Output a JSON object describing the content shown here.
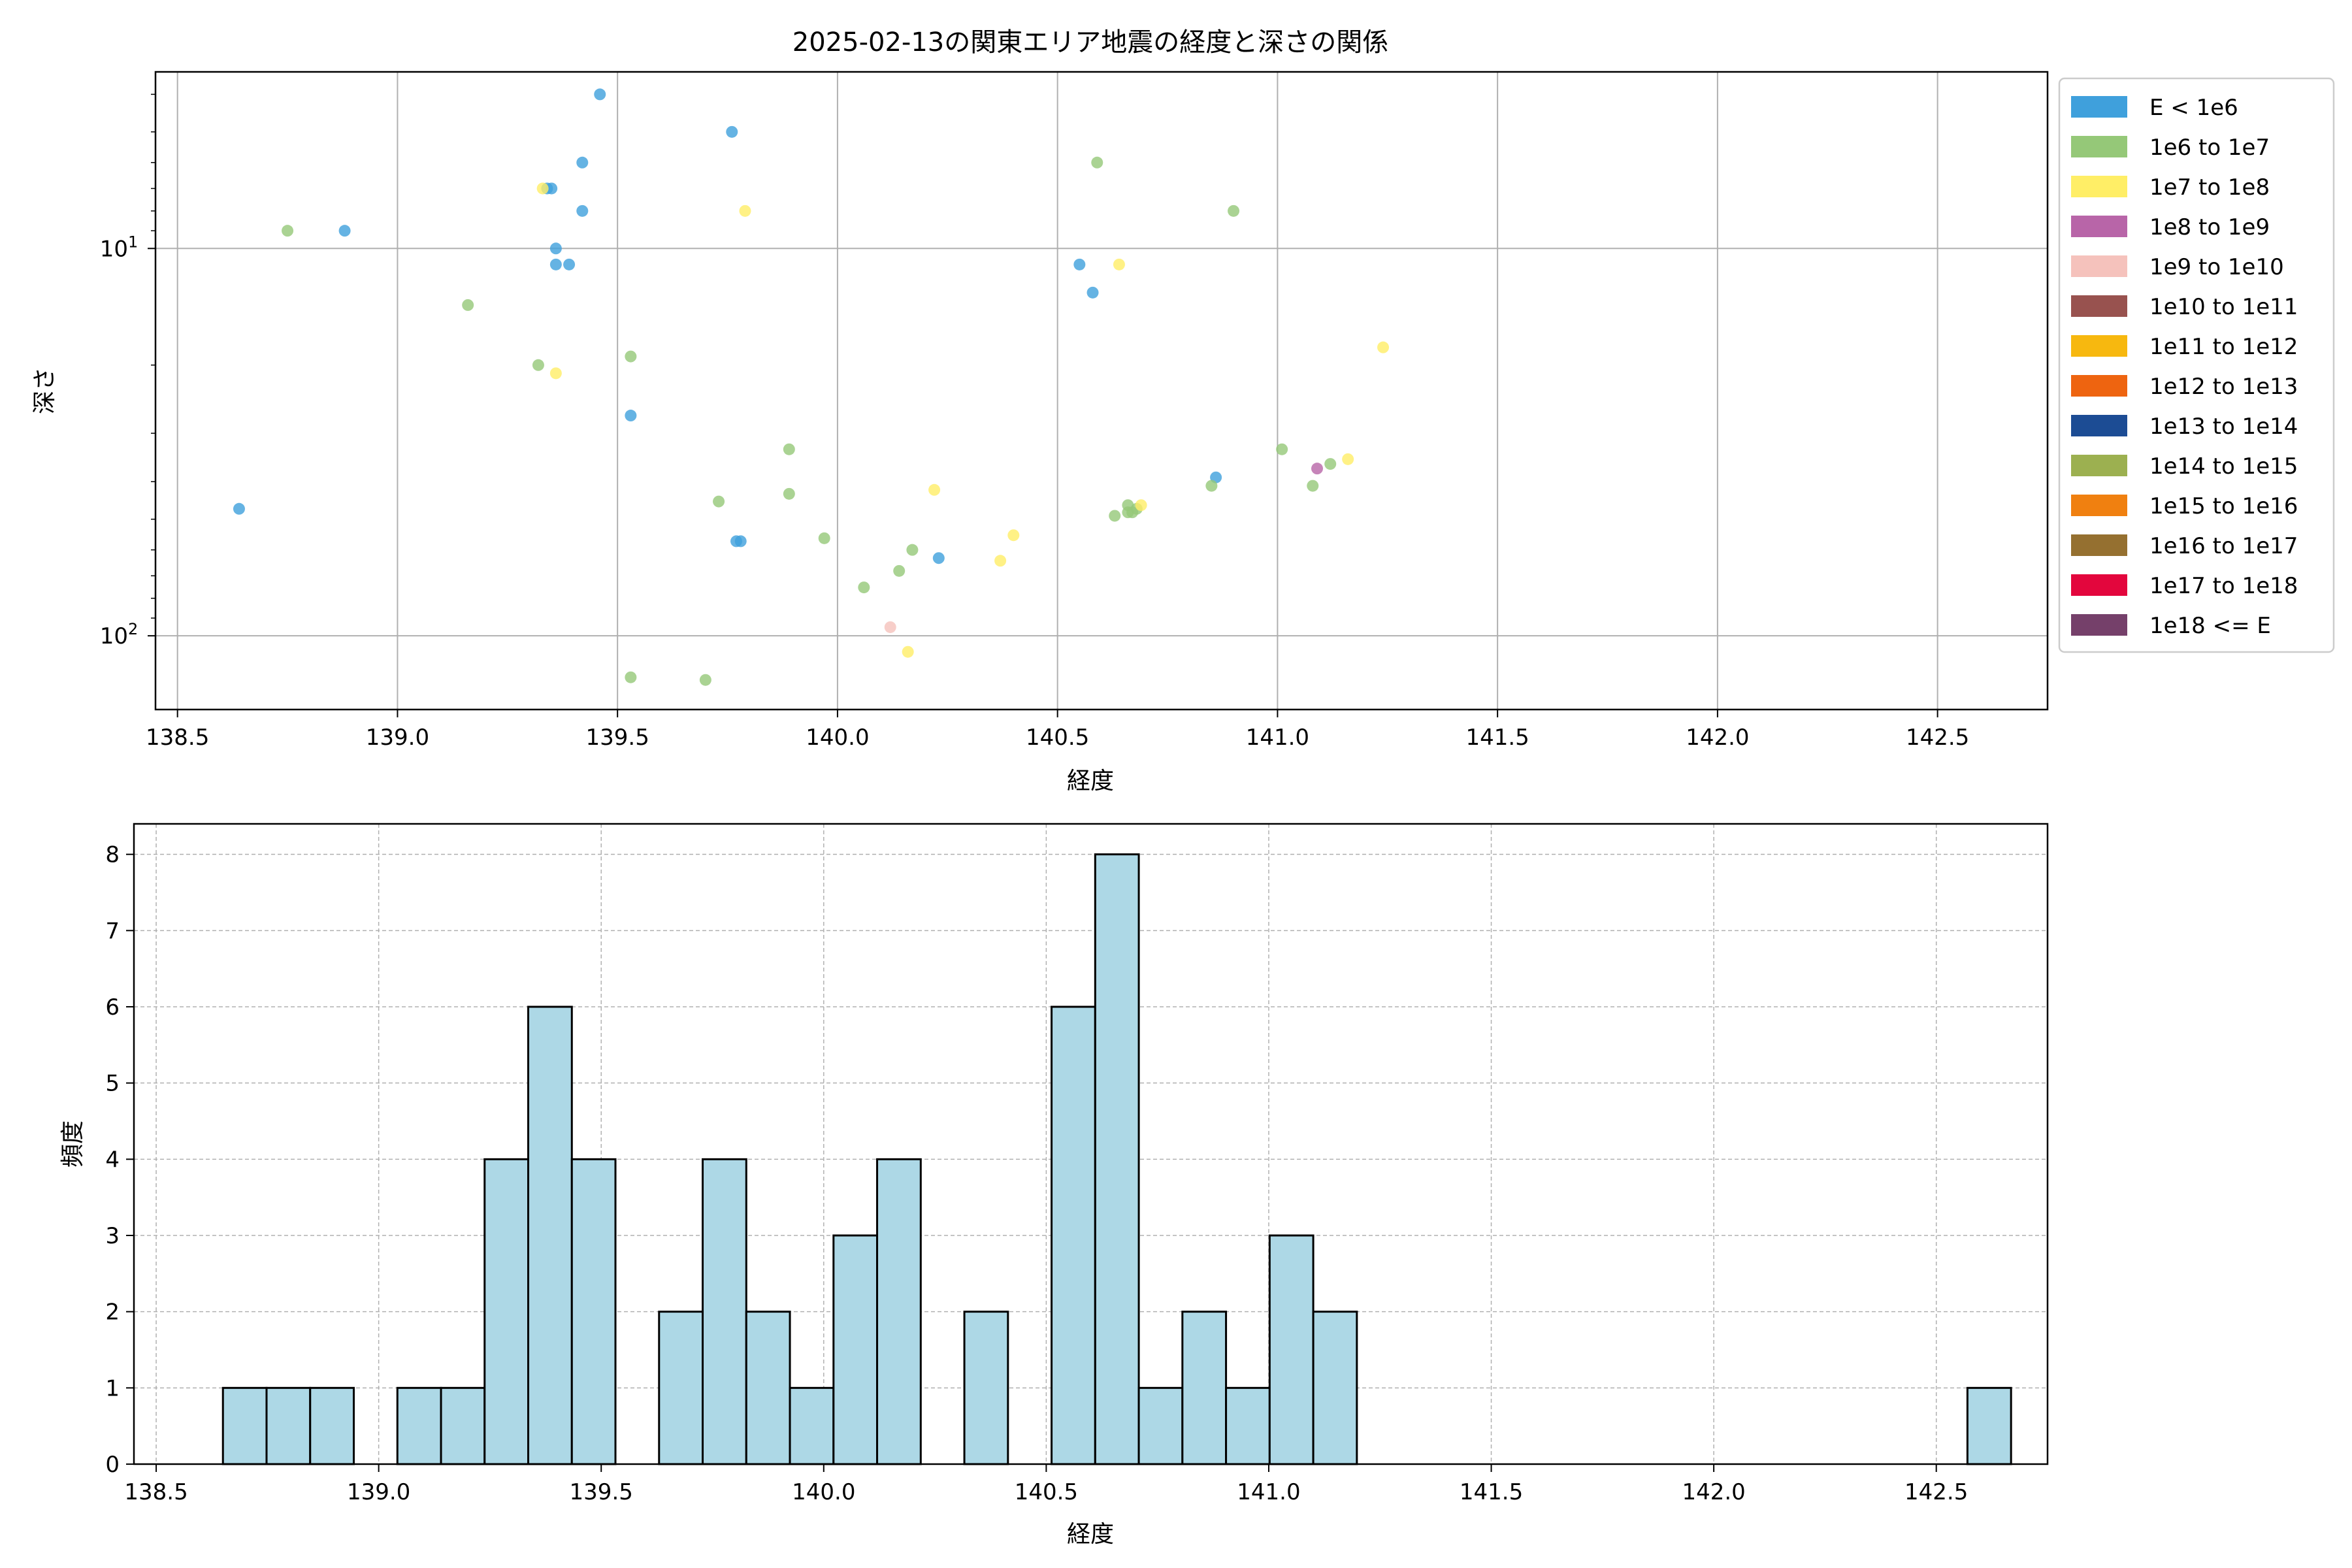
{
  "chart_data": [
    {
      "type": "scatter",
      "title": "2025-02-13の関東エリア地震の経度と深さの関係",
      "xlabel": "経度",
      "ylabel": "深さ",
      "xlim": [
        138.45,
        142.75
      ],
      "ylim": [
        3.5,
        155
      ],
      "yscale": "log",
      "y_inverted": true,
      "grid": true,
      "legend_position": "outside-right",
      "x_ticks": [
        "138.5",
        "139.0",
        "139.5",
        "140.0",
        "140.5",
        "141.0",
        "141.5",
        "142.0",
        "142.5"
      ],
      "y_tick_values": [
        10,
        100
      ],
      "y_tick_labels": [
        {
          "base": "10",
          "exp": "1"
        },
        {
          "base": "10",
          "exp": "2"
        }
      ],
      "legend": [
        {
          "label": "E < 1e6",
          "color": "#3FA0DC"
        },
        {
          "label": "1e6 to 1e7",
          "color": "#95C878"
        },
        {
          "label": "1e7 to 1e8",
          "color": "#FFEE66"
        },
        {
          "label": "1e8 to 1e9",
          "color": "#B865A8"
        },
        {
          "label": "1e9 to 1e10",
          "color": "#F5C2BC"
        },
        {
          "label": "1e10 to 1e11",
          "color": "#98524F"
        },
        {
          "label": "1e11 to 1e12",
          "color": "#F7B80F"
        },
        {
          "label": "1e12 to 1e13",
          "color": "#EE6410"
        },
        {
          "label": "1e13 to 1e14",
          "color": "#1C4C94"
        },
        {
          "label": "1e14 to 1e15",
          "color": "#9CB050"
        },
        {
          "label": "1e15 to 1e16",
          "color": "#F08010"
        },
        {
          "label": "1e16 to 1e17",
          "color": "#957030"
        },
        {
          "label": "1e17 to 1e18",
          "color": "#E3063D"
        },
        {
          "label": "1e18 <= E",
          "color": "#75406A"
        }
      ],
      "points": [
        {
          "x": 139.46,
          "y": 4.0,
          "c": 0
        },
        {
          "x": 139.76,
          "y": 5.0,
          "c": 0
        },
        {
          "x": 138.88,
          "y": 9.0,
          "c": 0
        },
        {
          "x": 139.42,
          "y": 6.0,
          "c": 0
        },
        {
          "x": 139.34,
          "y": 7.0,
          "c": 0
        },
        {
          "x": 139.35,
          "y": 7.0,
          "c": 0
        },
        {
          "x": 139.42,
          "y": 8.0,
          "c": 0
        },
        {
          "x": 139.36,
          "y": 10.0,
          "c": 0
        },
        {
          "x": 139.36,
          "y": 11.0,
          "c": 0
        },
        {
          "x": 139.39,
          "y": 11.0,
          "c": 0
        },
        {
          "x": 139.53,
          "y": 27.0,
          "c": 0
        },
        {
          "x": 138.64,
          "y": 47.0,
          "c": 0
        },
        {
          "x": 139.77,
          "y": 57.0,
          "c": 0
        },
        {
          "x": 139.78,
          "y": 57.0,
          "c": 0
        },
        {
          "x": 140.23,
          "y": 63.0,
          "c": 0
        },
        {
          "x": 140.55,
          "y": 11.0,
          "c": 0
        },
        {
          "x": 140.58,
          "y": 13.0,
          "c": 0
        },
        {
          "x": 140.86,
          "y": 39.0,
          "c": 0
        },
        {
          "x": 138.75,
          "y": 9.0,
          "c": 1
        },
        {
          "x": 139.16,
          "y": 14.0,
          "c": 1
        },
        {
          "x": 139.32,
          "y": 20.0,
          "c": 1
        },
        {
          "x": 139.53,
          "y": 19.0,
          "c": 1
        },
        {
          "x": 139.89,
          "y": 33.0,
          "c": 1
        },
        {
          "x": 139.89,
          "y": 43.0,
          "c": 1
        },
        {
          "x": 139.73,
          "y": 45.0,
          "c": 1
        },
        {
          "x": 139.97,
          "y": 56.0,
          "c": 1
        },
        {
          "x": 140.17,
          "y": 60.0,
          "c": 1
        },
        {
          "x": 140.14,
          "y": 68.0,
          "c": 1
        },
        {
          "x": 140.06,
          "y": 75.0,
          "c": 1
        },
        {
          "x": 139.53,
          "y": 128.0,
          "c": 1
        },
        {
          "x": 139.7,
          "y": 130.0,
          "c": 1
        },
        {
          "x": 140.59,
          "y": 6.0,
          "c": 1
        },
        {
          "x": 140.9,
          "y": 8.0,
          "c": 1
        },
        {
          "x": 140.63,
          "y": 49.0,
          "c": 1
        },
        {
          "x": 140.66,
          "y": 46.0,
          "c": 1
        },
        {
          "x": 140.66,
          "y": 48.0,
          "c": 1
        },
        {
          "x": 140.67,
          "y": 48.0,
          "c": 1
        },
        {
          "x": 140.68,
          "y": 47.0,
          "c": 1
        },
        {
          "x": 140.85,
          "y": 41.0,
          "c": 1
        },
        {
          "x": 141.01,
          "y": 33.0,
          "c": 1
        },
        {
          "x": 141.08,
          "y": 41.0,
          "c": 1
        },
        {
          "x": 141.12,
          "y": 36.0,
          "c": 1
        },
        {
          "x": 139.33,
          "y": 7.0,
          "c": 2
        },
        {
          "x": 139.36,
          "y": 21.0,
          "c": 2
        },
        {
          "x": 139.79,
          "y": 8.0,
          "c": 2
        },
        {
          "x": 140.22,
          "y": 42.0,
          "c": 2
        },
        {
          "x": 140.4,
          "y": 55.0,
          "c": 2
        },
        {
          "x": 140.37,
          "y": 64.0,
          "c": 2
        },
        {
          "x": 140.16,
          "y": 110.0,
          "c": 2
        },
        {
          "x": 140.64,
          "y": 11.0,
          "c": 2
        },
        {
          "x": 141.24,
          "y": 18.0,
          "c": 2
        },
        {
          "x": 141.16,
          "y": 35.0,
          "c": 2
        },
        {
          "x": 140.69,
          "y": 46.0,
          "c": 2
        },
        {
          "x": 141.09,
          "y": 37.0,
          "c": 3
        },
        {
          "x": 140.12,
          "y": 95.0,
          "c": 4
        }
      ]
    },
    {
      "type": "bar",
      "subtype": "histogram",
      "xlabel": "経度",
      "ylabel": "頻度",
      "xlim": [
        138.45,
        142.75
      ],
      "ylim": [
        0,
        8.4
      ],
      "grid": true,
      "bar_color": "#ADD8E6",
      "edge_color": "#000000",
      "bin_start": 138.65,
      "bin_width": 0.098,
      "x_ticks": [
        "138.5",
        "139.0",
        "139.5",
        "140.0",
        "140.5",
        "141.0",
        "141.5",
        "142.0",
        "142.5"
      ],
      "y_ticks": [
        "0",
        "1",
        "2",
        "3",
        "4",
        "5",
        "6",
        "7",
        "8"
      ],
      "values": [
        1,
        1,
        1,
        0,
        1,
        1,
        4,
        6,
        4,
        0,
        2,
        4,
        2,
        1,
        3,
        4,
        0,
        2,
        0,
        6,
        8,
        1,
        2,
        1,
        3,
        2,
        0,
        0,
        0,
        0,
        0,
        0,
        0,
        0,
        0,
        0,
        0,
        0,
        0,
        0,
        1
      ]
    }
  ]
}
